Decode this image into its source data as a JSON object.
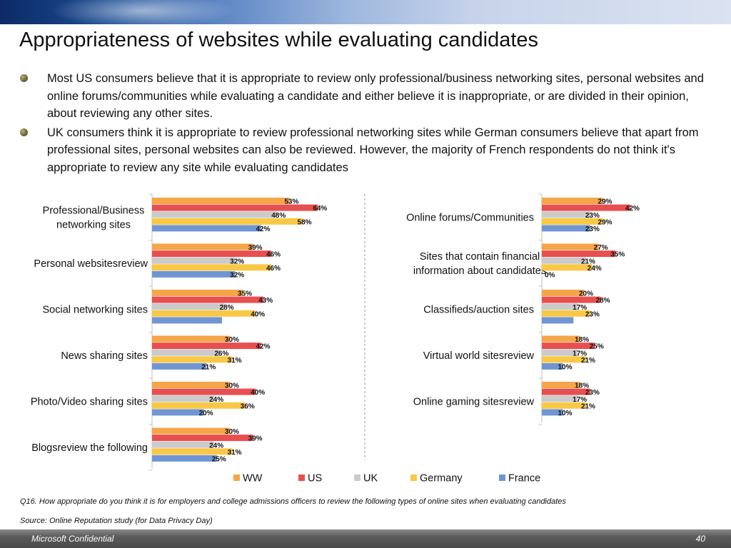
{
  "page": {
    "title": "Appropriateness of websites while evaluating candidates",
    "bullets": [
      "Most US consumers believe that it is appropriate to review only professional/business networking sites, personal websites and online forums/communities while evaluating a candidate and either believe it is inappropriate, or are divided in their opinion, about reviewing any other sites.",
      "UK consumers think it is appropriate to review professional networking sites while German consumers believe that apart from professional sites, personal websites can also be reviewed. However, the majority of French respondents do not think it's appropriate to review any site  while evaluating candidates"
    ],
    "question_note": "Q16. How appropriate do you think it is for employers and college admissions officers to review the following types of online sites when evaluating candidates",
    "source_note": "Source: Online Reputation study (for Data Privacy Day)",
    "footer_left": "Microsoft Confidential",
    "footer_right": "40"
  },
  "chart_data": {
    "type": "bar",
    "orientation": "horizontal",
    "value_suffix": "%",
    "series": [
      {
        "name": "WW",
        "color": "#f5a54a"
      },
      {
        "name": "US",
        "color": "#e84f50"
      },
      {
        "name": "UK",
        "color": "#cbcbcb"
      },
      {
        "name": "Germany",
        "color": "#f9c847"
      },
      {
        "name": "France",
        "color": "#6f96d3"
      }
    ],
    "legend": {
      "position": "bottom"
    },
    "panels": [
      {
        "categories": [
          {
            "label": "Professional/Business networking sites",
            "values": [
              53,
              64,
              48,
              58,
              42
            ]
          },
          {
            "label": "Personal websitesreview",
            "values": [
              39,
              46,
              32,
              46,
              32
            ]
          },
          {
            "label": "Social networking sites",
            "values": [
              35,
              43,
              28,
              40,
              27
            ]
          },
          {
            "label": "News sharing sites",
            "values": [
              30,
              42,
              26,
              31,
              21
            ]
          },
          {
            "label": "Photo/Video sharing sites",
            "values": [
              30,
              40,
              24,
              36,
              20
            ]
          },
          {
            "label": "Blogsreview the following",
            "values": [
              30,
              39,
              24,
              31,
              25
            ]
          }
        ],
        "value_labels": [
          [
            "53%",
            "64%",
            "48%",
            "58%",
            "42%"
          ],
          [
            "39%",
            "46%",
            "32%",
            "46%",
            "32%"
          ],
          [
            "35%",
            "43%",
            "28%",
            "40%",
            ""
          ],
          [
            "30%",
            "42%",
            "26%",
            "31%",
            "21%"
          ],
          [
            "30%",
            "40%",
            "24%",
            "36%",
            "20%"
          ],
          [
            "30%",
            "39%",
            "24%",
            "31%",
            "25%"
          ]
        ]
      },
      {
        "categories": [
          {
            "label": "Online forums/Communities",
            "values": [
              29,
              42,
              23,
              29,
              23
            ]
          },
          {
            "label": "Sites that contain financial information about candidates",
            "values": [
              27,
              35,
              21,
              24,
              0
            ]
          },
          {
            "label": "Classifieds/auction sites",
            "values": [
              20,
              28,
              17,
              23,
              15
            ]
          },
          {
            "label": "Virtual world sitesreview",
            "values": [
              18,
              25,
              17,
              21,
              10
            ]
          },
          {
            "label": "Online gaming sitesreview",
            "values": [
              18,
              23,
              17,
              21,
              10
            ]
          }
        ],
        "value_labels": [
          [
            "29%",
            "42%",
            "23%",
            "29%",
            "23%"
          ],
          [
            "27%",
            "35%",
            "21%",
            "24%",
            "0%"
          ],
          [
            "20%",
            "28%",
            "17%",
            "23%",
            ""
          ],
          [
            "18%",
            "25%",
            "17%",
            "21%",
            "10%"
          ],
          [
            "18%",
            "23%",
            "17%",
            "21%",
            "10%"
          ]
        ]
      }
    ]
  }
}
